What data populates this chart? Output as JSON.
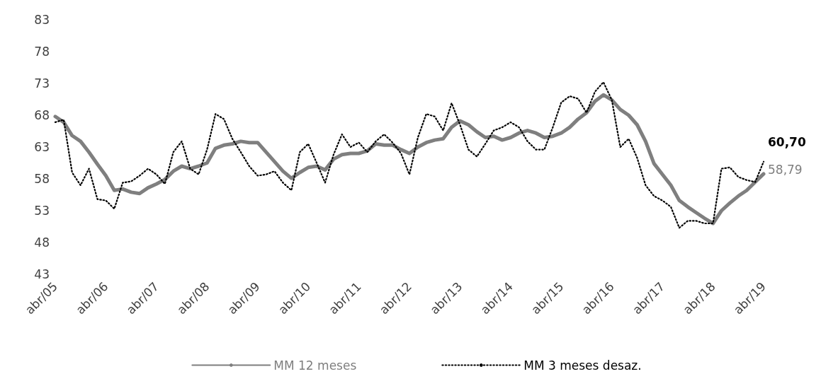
{
  "chart_data": {
    "type": "line",
    "categories": [
      "abr/05",
      null,
      null,
      null,
      null,
      null,
      "abr/06",
      null,
      null,
      null,
      null,
      null,
      "abr/07",
      null,
      null,
      null,
      null,
      null,
      "abr/08",
      null,
      null,
      null,
      null,
      null,
      "abr/09",
      null,
      null,
      null,
      null,
      null,
      "abr/10",
      null,
      null,
      null,
      null,
      null,
      "abr/11",
      null,
      null,
      null,
      null,
      null,
      "abr/12",
      null,
      null,
      null,
      null,
      null,
      "abr/13",
      null,
      null,
      null,
      null,
      null,
      "abr/14",
      null,
      null,
      null,
      null,
      null,
      "abr/15",
      null,
      null,
      null,
      null,
      null,
      "abr/16",
      null,
      null,
      null,
      null,
      null,
      "abr/17",
      null,
      null,
      null,
      null,
      null,
      "abr/18",
      null,
      null,
      null,
      null,
      null,
      "abr/19"
    ],
    "ylim": [
      43,
      83
    ],
    "yticks": [
      43,
      48,
      53,
      58,
      63,
      68,
      73,
      78,
      83
    ],
    "grid": false,
    "legend": "bottom",
    "marker": "none",
    "series": [
      {
        "name": "MM 12 meses",
        "color": "#7f7f7f",
        "line_style": "solid",
        "values": [
          67.8,
          66.9,
          64.8,
          63.9,
          62.2,
          60.3,
          58.5,
          56.2,
          56.4,
          55.9,
          55.7,
          56.6,
          57.2,
          57.9,
          59.2,
          60.0,
          59.6,
          60.0,
          60.5,
          62.8,
          63.3,
          63.5,
          63.9,
          63.7,
          63.7,
          62.2,
          60.7,
          59.2,
          58.1,
          59.0,
          59.8,
          60.0,
          59.4,
          61.1,
          61.8,
          62.0,
          62.0,
          62.4,
          63.5,
          63.3,
          63.3,
          62.6,
          62.0,
          63.0,
          63.7,
          64.1,
          64.3,
          66.1,
          67.1,
          66.5,
          65.4,
          64.5,
          64.7,
          64.1,
          64.5,
          65.2,
          65.6,
          65.2,
          64.5,
          64.7,
          65.2,
          66.1,
          67.4,
          68.4,
          70.2,
          71.2,
          70.4,
          68.9,
          68.0,
          66.5,
          63.9,
          60.4,
          58.7,
          57.0,
          54.6,
          53.6,
          52.7,
          51.8,
          51.0,
          53.0,
          54.2,
          55.3,
          56.2,
          57.5,
          58.79
        ],
        "value_labels": [
          null,
          null,
          null,
          null,
          null,
          null,
          null,
          null,
          null,
          null,
          null,
          null,
          null,
          null,
          null,
          null,
          null,
          null,
          null,
          null,
          null,
          null,
          null,
          null,
          null,
          null,
          null,
          null,
          null,
          null,
          null,
          null,
          null,
          null,
          null,
          null,
          null,
          null,
          null,
          null,
          null,
          null,
          null,
          null,
          null,
          null,
          null,
          null,
          null,
          null,
          null,
          null,
          null,
          null,
          null,
          null,
          null,
          null,
          null,
          null,
          null,
          null,
          null,
          null,
          null,
          null,
          null,
          null,
          null,
          null,
          null,
          null,
          null,
          null,
          null,
          null,
          null,
          null,
          null,
          null,
          null,
          null,
          null,
          null,
          "58,79"
        ]
      },
      {
        "name": "MM 3 meses desaz.",
        "color": "#000000",
        "line_style": "dotted",
        "values": [
          66.9,
          67.3,
          59.0,
          57.0,
          59.6,
          54.8,
          54.6,
          53.3,
          57.4,
          57.6,
          58.5,
          59.6,
          58.7,
          57.2,
          62.2,
          63.9,
          59.6,
          58.7,
          62.6,
          68.2,
          67.4,
          64.3,
          62.2,
          60.0,
          58.5,
          58.7,
          59.2,
          57.4,
          56.2,
          62.2,
          63.5,
          60.5,
          57.4,
          61.8,
          65.0,
          63.0,
          63.7,
          62.2,
          63.9,
          65.0,
          63.7,
          62.0,
          58.7,
          64.5,
          68.2,
          67.8,
          65.6,
          69.9,
          66.5,
          62.6,
          61.5,
          63.5,
          65.6,
          66.1,
          66.9,
          66.1,
          63.9,
          62.6,
          62.6,
          66.1,
          70.0,
          71.0,
          70.6,
          68.4,
          71.7,
          73.2,
          70.4,
          63.0,
          64.3,
          61.3,
          57.0,
          55.3,
          54.6,
          53.6,
          50.3,
          51.4,
          51.4,
          51.0,
          51.0,
          59.6,
          59.8,
          58.3,
          57.8,
          57.5,
          60.7
        ],
        "value_labels": [
          null,
          null,
          null,
          null,
          null,
          null,
          null,
          null,
          null,
          null,
          null,
          null,
          null,
          null,
          null,
          null,
          null,
          null,
          null,
          null,
          null,
          null,
          null,
          null,
          null,
          null,
          null,
          null,
          null,
          null,
          null,
          null,
          null,
          null,
          null,
          null,
          null,
          null,
          null,
          null,
          null,
          null,
          null,
          null,
          null,
          null,
          null,
          null,
          null,
          null,
          null,
          null,
          null,
          null,
          null,
          null,
          null,
          null,
          null,
          null,
          null,
          null,
          null,
          null,
          null,
          null,
          null,
          null,
          null,
          null,
          null,
          null,
          null,
          null,
          null,
          null,
          null,
          null,
          null,
          null,
          null,
          null,
          null,
          null,
          "60,70"
        ]
      }
    ]
  }
}
